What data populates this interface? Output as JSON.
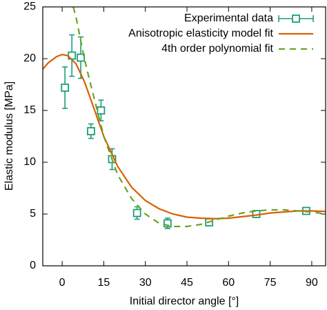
{
  "chart_data": {
    "type": "line",
    "xlabel": "Initial director angle [°]",
    "ylabel": "Elastic modulus [MPa]",
    "xlim": [
      -7,
      95
    ],
    "xticks": [
      0,
      15,
      30,
      45,
      60,
      75,
      90
    ],
    "ylim": [
      0,
      25
    ],
    "yticks": [
      0,
      5,
      10,
      15,
      20,
      25
    ],
    "legend": "top-right",
    "series": [
      {
        "name": "Experimental data",
        "type": "scatter",
        "color": "#1a9e77",
        "x": [
          1,
          3.5,
          6.7,
          10.4,
          14,
          18,
          27,
          38,
          53,
          70,
          88
        ],
        "y": [
          17.2,
          20.3,
          20.1,
          13.0,
          15.0,
          10.3,
          5.1,
          4.1,
          4.2,
          5.0,
          5.3
        ],
        "error": [
          2.0,
          2.0,
          2.0,
          0.7,
          1.0,
          1.0,
          0.6,
          0.5,
          0.3,
          0.2,
          0.2
        ]
      },
      {
        "name": "Anisotropic elasticity model fit",
        "type": "line",
        "color": "#d95f02",
        "x": [
          -7,
          -5,
          -2,
          0,
          2,
          5,
          8,
          10,
          15,
          20,
          25,
          30,
          35,
          40,
          45,
          50,
          55,
          60,
          65,
          70,
          75,
          80,
          85,
          90,
          95
        ],
        "y": [
          19.0,
          19.6,
          20.2,
          20.4,
          20.3,
          19.5,
          17.8,
          16.3,
          12.5,
          9.6,
          7.6,
          6.3,
          5.5,
          5.0,
          4.7,
          4.6,
          4.55,
          4.6,
          4.75,
          4.9,
          5.1,
          5.2,
          5.3,
          5.3,
          5.25
        ]
      },
      {
        "name": "4th order polynomial fit",
        "type": "line",
        "dashed": true,
        "color": "#66a61e",
        "x": [
          4,
          5,
          8,
          10,
          15,
          20,
          25,
          30,
          35,
          40,
          45,
          50,
          55,
          60,
          65,
          70,
          75,
          80,
          85,
          90,
          95
        ],
        "y": [
          25,
          24,
          20,
          17.8,
          12.5,
          8.8,
          6.5,
          5.0,
          4.1,
          3.8,
          3.8,
          4.0,
          4.4,
          4.8,
          5.1,
          5.3,
          5.4,
          5.4,
          5.3,
          5.2,
          5.0
        ]
      }
    ]
  }
}
